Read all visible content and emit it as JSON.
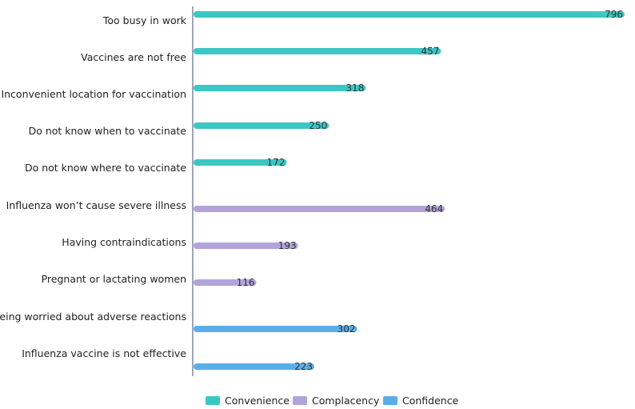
{
  "chart_data": {
    "type": "bar",
    "orientation": "horizontal",
    "categories": [
      "Too busy in work",
      "Vaccines are not free",
      "Inconvenient location for vaccination",
      "Do not know when to vaccinate",
      "Do not know where to vaccinate",
      "Influenza won’t cause severe illness",
      "Having contraindications",
      "Pregnant or lactating women",
      "Being worried about adverse reactions",
      "Influenza vaccine is not effective"
    ],
    "values": [
      796,
      457,
      318,
      250,
      172,
      464,
      193,
      116,
      302,
      223
    ],
    "groups": [
      "Convenience",
      "Convenience",
      "Convenience",
      "Convenience",
      "Convenience",
      "Complacency",
      "Complacency",
      "Complacency",
      "Confidence",
      "Confidence"
    ],
    "legend": [
      {
        "name": "Convenience",
        "color": "#3cc7c4"
      },
      {
        "name": "Complacency",
        "color": "#b3a3db"
      },
      {
        "name": "Confidence",
        "color": "#5aaee8"
      }
    ],
    "xlim": [
      0,
      800
    ],
    "legend_position": "bottom",
    "grid": false,
    "data_labels": true
  }
}
